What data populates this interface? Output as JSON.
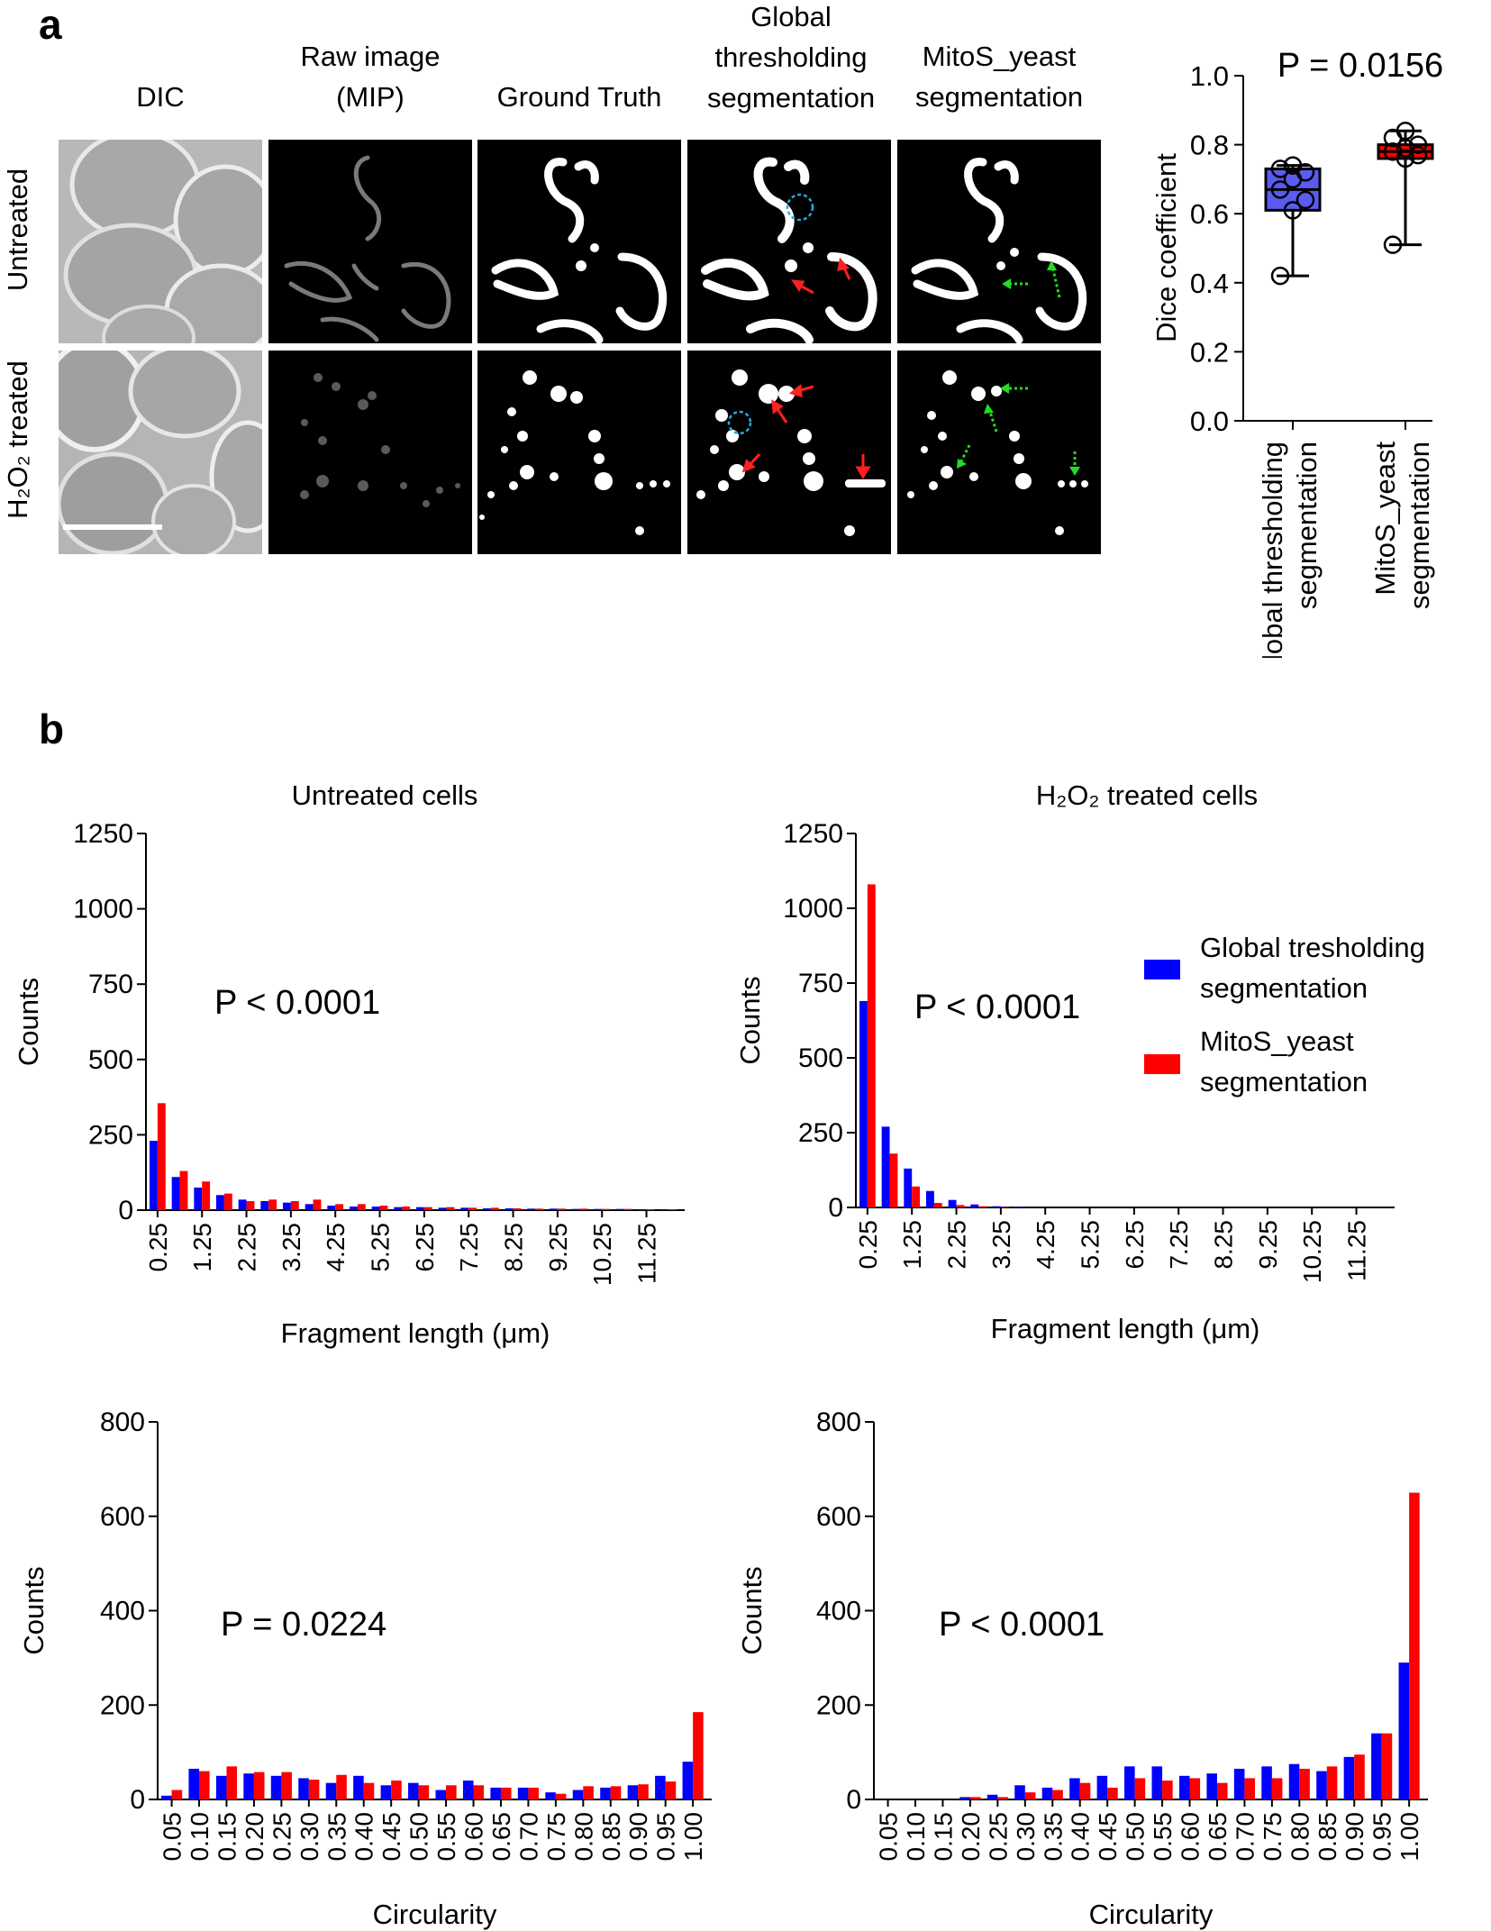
{
  "panel_a": {
    "letter": "a",
    "columns": [
      "DIC",
      "Raw image\n(MIP)",
      "Ground Truth",
      "Global\nthresholding\nsegmentation",
      "MitoS_yeast\nsegmentation"
    ],
    "rows": [
      "Untreated",
      "H₂O₂ treated"
    ]
  },
  "panel_b": {
    "letter": "b"
  },
  "colors": {
    "global": "#0000ff",
    "mitos": "#ff0000",
    "box_fill": "#5b5bf0",
    "cyan_marker": "#29a9e0",
    "green_arrow": "#22dd22"
  },
  "chart_data": [
    {
      "id": "dice",
      "type": "box",
      "title": "P = 0.0156",
      "ylabel": "Dice coefficient",
      "ylim": [
        0,
        1.0
      ],
      "yticks": [
        "0.0",
        "0.2",
        "0.4",
        "0.6",
        "0.8",
        "1.0"
      ],
      "categories": [
        "Global thresholding\nsegmentation",
        "MitoS_yeast\nsegmentation"
      ],
      "boxes": [
        {
          "name": "Global thresholding segmentation",
          "min": 0.42,
          "q1": 0.61,
          "median": 0.67,
          "q3": 0.73,
          "max": 0.74,
          "points": [
            0.42,
            0.61,
            0.64,
            0.67,
            0.7,
            0.72,
            0.73,
            0.74
          ]
        },
        {
          "name": "MitoS_yeast segmentation",
          "min": 0.51,
          "q1": 0.76,
          "median": 0.78,
          "q3": 0.8,
          "max": 0.84,
          "points": [
            0.51,
            0.76,
            0.77,
            0.78,
            0.79,
            0.8,
            0.82,
            0.84
          ]
        }
      ]
    },
    {
      "id": "len_untreated",
      "type": "bar",
      "title": "Untreated cells",
      "xlabel": "Fragment length (μm)",
      "ylabel": "Counts",
      "ylim": [
        0,
        1250
      ],
      "yticks": [
        "0",
        "250",
        "500",
        "750",
        "1000",
        "1250"
      ],
      "annotation": "P < 0.0001",
      "tick_labels": [
        "0.25",
        "1.25",
        "2.25",
        "3.25",
        "4.25",
        "5.25",
        "6.25",
        "7.25",
        "8.25",
        "9.25",
        "10.25",
        "11.25"
      ],
      "series": [
        {
          "name": "Global tresholding segmentation",
          "values": [
            230,
            110,
            75,
            50,
            35,
            30,
            25,
            20,
            15,
            12,
            12,
            10,
            10,
            8,
            8,
            6,
            6,
            5,
            5,
            4,
            4,
            4,
            3,
            3
          ]
        },
        {
          "name": "MitoS_yeast segmentation",
          "values": [
            355,
            130,
            95,
            55,
            30,
            35,
            30,
            35,
            20,
            20,
            15,
            12,
            10,
            10,
            8,
            8,
            6,
            5,
            5,
            5,
            4,
            4,
            3,
            3
          ]
        }
      ]
    },
    {
      "id": "len_h2o2",
      "type": "bar",
      "title": "H₂O₂ treated cells",
      "xlabel": "Fragment length (μm)",
      "ylabel": "Counts",
      "ylim": [
        0,
        1250
      ],
      "yticks": [
        "0",
        "250",
        "500",
        "750",
        "1000",
        "1250"
      ],
      "annotation": "P < 0.0001",
      "tick_labels": [
        "0.25",
        "1.25",
        "2.25",
        "3.25",
        "4.25",
        "5.25",
        "6.25",
        "7.25",
        "8.25",
        "9.25",
        "10.25",
        "11.25"
      ],
      "series": [
        {
          "name": "Global tresholding segmentation",
          "values": [
            690,
            270,
            130,
            55,
            25,
            10,
            4,
            2,
            0,
            0,
            0,
            0,
            0,
            0,
            0,
            0,
            0,
            0,
            0,
            0,
            0,
            0,
            0,
            0
          ]
        },
        {
          "name": "MitoS_yeast segmentation",
          "values": [
            1080,
            180,
            70,
            15,
            8,
            4,
            2,
            0,
            0,
            0,
            0,
            0,
            0,
            0,
            0,
            0,
            0,
            0,
            0,
            0,
            0,
            0,
            0,
            0
          ]
        }
      ]
    },
    {
      "id": "circ_untreated",
      "type": "bar",
      "title": "",
      "xlabel": "Circularity",
      "ylabel": "Counts",
      "ylim": [
        0,
        800
      ],
      "yticks": [
        "0",
        "200",
        "400",
        "600",
        "800"
      ],
      "annotation": "P = 0.0224",
      "tick_labels": [
        "0.05",
        "0.10",
        "0.15",
        "0.20",
        "0.25",
        "0.30",
        "0.35",
        "0.40",
        "0.45",
        "0.50",
        "0.55",
        "0.60",
        "0.65",
        "0.70",
        "0.75",
        "0.80",
        "0.85",
        "0.90",
        "0.95",
        "1.00"
      ],
      "series": [
        {
          "name": "Global tresholding segmentation",
          "values": [
            8,
            65,
            50,
            55,
            50,
            45,
            35,
            50,
            30,
            35,
            20,
            40,
            25,
            25,
            15,
            20,
            25,
            30,
            50,
            80
          ]
        },
        {
          "name": "MitoS_yeast segmentation",
          "values": [
            20,
            60,
            70,
            58,
            58,
            42,
            52,
            35,
            40,
            30,
            30,
            30,
            25,
            25,
            12,
            28,
            28,
            32,
            38,
            185
          ]
        }
      ]
    },
    {
      "id": "circ_h2o2",
      "type": "bar",
      "title": "",
      "xlabel": "Circularity",
      "ylabel": "Counts",
      "ylim": [
        0,
        800
      ],
      "yticks": [
        "0",
        "200",
        "400",
        "600",
        "800"
      ],
      "annotation": "P < 0.0001",
      "tick_labels": [
        "0.05",
        "0.10",
        "0.15",
        "0.20",
        "0.25",
        "0.30",
        "0.35",
        "0.40",
        "0.45",
        "0.50",
        "0.55",
        "0.60",
        "0.65",
        "0.70",
        "0.75",
        "0.80",
        "0.85",
        "0.90",
        "0.95",
        "1.00"
      ],
      "series": [
        {
          "name": "Global tresholding segmentation",
          "values": [
            0,
            0,
            0,
            5,
            10,
            30,
            25,
            45,
            50,
            70,
            70,
            50,
            55,
            65,
            70,
            75,
            60,
            90,
            140,
            290
          ]
        },
        {
          "name": "MitoS_yeast segmentation",
          "values": [
            0,
            0,
            0,
            5,
            5,
            15,
            20,
            35,
            25,
            45,
            40,
            45,
            35,
            45,
            45,
            65,
            70,
            95,
            140,
            650
          ]
        }
      ]
    }
  ],
  "legend": {
    "global": "Global tresholding\nsegmentation",
    "mitos": "MitoS_yeast\nsegmentation"
  }
}
